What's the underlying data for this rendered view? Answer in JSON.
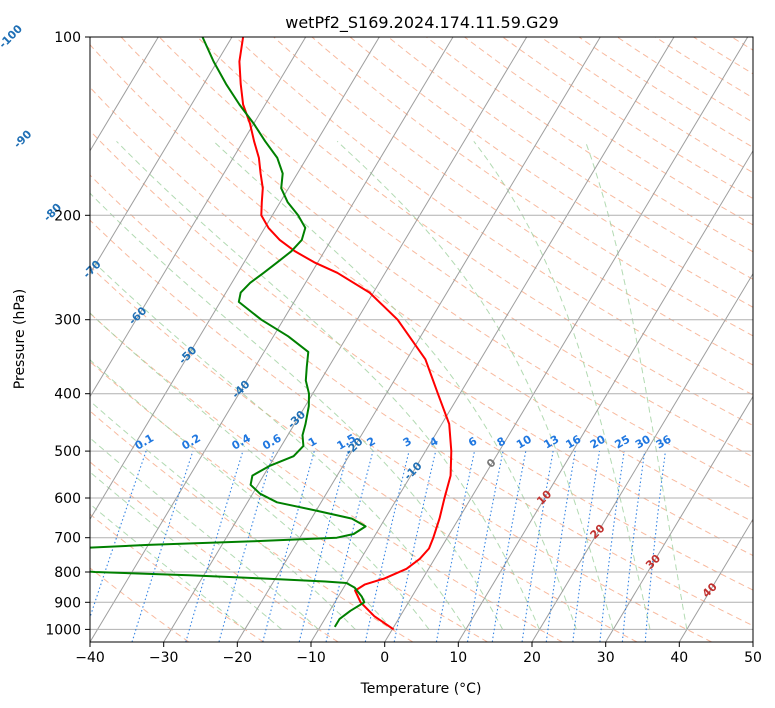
{
  "chart_data": {
    "type": "skew-t",
    "title": "wetPf2_S169.2024.174.11.59.G29",
    "xlabel": "Temperature (°C)",
    "ylabel": "Pressure (hPa)",
    "xlim": [
      -40,
      50
    ],
    "ylim": [
      1050,
      100
    ],
    "y_scale": "log",
    "x_ticks": [
      -40,
      -30,
      -20,
      -10,
      0,
      10,
      20,
      30,
      40,
      50
    ],
    "x_tick_labels": [
      "−40",
      "−30",
      "−20",
      "−10",
      "0",
      "10",
      "20",
      "30",
      "40",
      "50"
    ],
    "y_ticks": [
      1000,
      900,
      800,
      700,
      600,
      500,
      400,
      300,
      200,
      100
    ],
    "y_tick_labels": [
      "1000",
      "900",
      "800",
      "700",
      "600",
      "500",
      "400",
      "300",
      "200",
      "100"
    ],
    "grid": true,
    "colors": {
      "temperature": "#ff0000",
      "dewpoint": "#008000",
      "isotherm": "#9e9e9e",
      "dry_adiabat": "#f5a37f",
      "moist_adiabat": "#9fd19f",
      "mixing_ratio": "#1f77e0",
      "label_blue": "#1f6fb5",
      "label_red": "#c0302e"
    },
    "isotherm_labels": {
      "values": [
        -100,
        -90,
        -80,
        -70,
        -60,
        -50,
        -40,
        -30,
        -20,
        -10,
        0,
        10,
        20,
        30,
        40
      ],
      "text": [
        "-100",
        "-90",
        "-80",
        "-70",
        "-60",
        "-50",
        "-40",
        "-30",
        "-20",
        "-10",
        "0",
        "10",
        "20",
        "30",
        "40"
      ]
    },
    "mixing_ratio_labels": [
      "0.1",
      "0.2",
      "0.4",
      "0.6",
      "1",
      "1.5",
      "2",
      "3",
      "4",
      "6",
      "8",
      "10",
      "13",
      "16",
      "20",
      "25",
      "30",
      "36"
    ],
    "mixing_ratio_values": [
      0.1,
      0.2,
      0.4,
      0.6,
      1,
      1.5,
      2,
      3,
      4,
      6,
      8,
      10,
      13,
      16,
      20,
      25,
      30,
      36
    ],
    "series": [
      {
        "key": "temperature",
        "points": [
          [
            1000,
            0.2
          ],
          [
            950,
            -3.5
          ],
          [
            900,
            -6.5
          ],
          [
            860,
            -8.2
          ],
          [
            840,
            -7.4
          ],
          [
            820,
            -5.2
          ],
          [
            790,
            -3.0
          ],
          [
            760,
            -2.0
          ],
          [
            730,
            -1.6
          ],
          [
            700,
            -1.9
          ],
          [
            650,
            -2.6
          ],
          [
            600,
            -3.6
          ],
          [
            550,
            -4.6
          ],
          [
            500,
            -6.5
          ],
          [
            450,
            -9.0
          ],
          [
            400,
            -13.0
          ],
          [
            350,
            -17.5
          ],
          [
            300,
            -24.5
          ],
          [
            270,
            -30.5
          ],
          [
            250,
            -36.5
          ],
          [
            240,
            -40.5
          ],
          [
            230,
            -44.0
          ],
          [
            220,
            -47.0
          ],
          [
            210,
            -49.5
          ],
          [
            200,
            -51.5
          ],
          [
            190,
            -52.5
          ],
          [
            180,
            -53.5
          ],
          [
            170,
            -55.0
          ],
          [
            160,
            -56.5
          ],
          [
            150,
            -58.5
          ],
          [
            140,
            -60.5
          ],
          [
            130,
            -63.0
          ],
          [
            120,
            -65.0
          ],
          [
            110,
            -67.0
          ],
          [
            100,
            -68.5
          ]
        ]
      },
      {
        "key": "dewpoint",
        "points": [
          [
            990,
            -8.0
          ],
          [
            960,
            -8.0
          ],
          [
            930,
            -7.2
          ],
          [
            900,
            -6.0
          ],
          [
            880,
            -6.8
          ],
          [
            850,
            -8.5
          ],
          [
            835,
            -10.0
          ],
          [
            830,
            -13.0
          ],
          [
            820,
            -22.0
          ],
          [
            810,
            -32.0
          ],
          [
            800,
            -45.0
          ],
          [
            785,
            -55.0
          ],
          [
            735,
            -55.0
          ],
          [
            720,
            -40.0
          ],
          [
            710,
            -26.0
          ],
          [
            700,
            -15.0
          ],
          [
            690,
            -13.0
          ],
          [
            670,
            -12.0
          ],
          [
            650,
            -14.5
          ],
          [
            630,
            -20.0
          ],
          [
            610,
            -26.0
          ],
          [
            590,
            -29.0
          ],
          [
            570,
            -31.0
          ],
          [
            550,
            -31.5
          ],
          [
            530,
            -30.0
          ],
          [
            510,
            -27.5
          ],
          [
            490,
            -27.0
          ],
          [
            470,
            -28.0
          ],
          [
            450,
            -28.5
          ],
          [
            420,
            -29.5
          ],
          [
            400,
            -30.5
          ],
          [
            380,
            -32.0
          ],
          [
            360,
            -33.0
          ],
          [
            340,
            -34.0
          ],
          [
            320,
            -38.0
          ],
          [
            300,
            -43.0
          ],
          [
            280,
            -47.5
          ],
          [
            270,
            -48.0
          ],
          [
            260,
            -47.5
          ],
          [
            250,
            -46.5
          ],
          [
            240,
            -45.5
          ],
          [
            230,
            -44.5
          ],
          [
            220,
            -44.0
          ],
          [
            210,
            -44.5
          ],
          [
            200,
            -46.5
          ],
          [
            190,
            -49.0
          ],
          [
            180,
            -51.0
          ],
          [
            170,
            -52.0
          ],
          [
            160,
            -54.0
          ],
          [
            150,
            -57.0
          ],
          [
            140,
            -60.0
          ],
          [
            130,
            -63.5
          ],
          [
            120,
            -67.0
          ],
          [
            110,
            -70.5
          ],
          [
            100,
            -74.0
          ]
        ]
      }
    ]
  }
}
